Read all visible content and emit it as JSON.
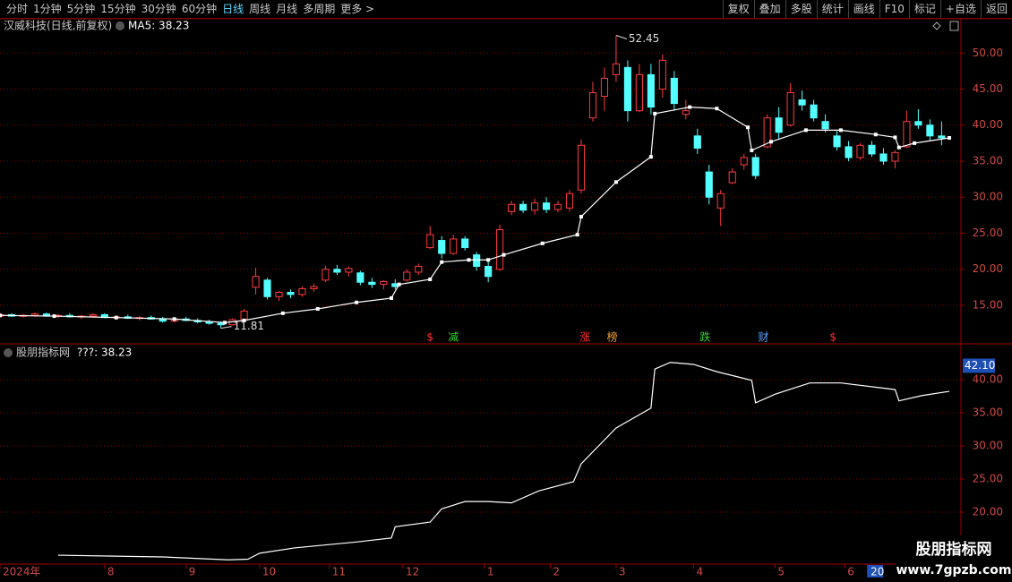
{
  "toolbar": {
    "left": [
      "分时",
      "1分钟",
      "5分钟",
      "15分钟",
      "30分钟",
      "60分钟",
      "日线",
      "周线",
      "月线",
      "多周期",
      "更多 >"
    ],
    "active": 6,
    "right": [
      "复权",
      "叠加",
      "多股",
      "统计",
      "画线",
      "F10",
      "标记",
      "+自选",
      "返回"
    ]
  },
  "chart_data": [
    {
      "type": "candlestick",
      "title": "汉威科技(日线,前复权)",
      "up_color": "#ff3c3c",
      "down_color": "#54ffff",
      "xlim": [
        0,
        248
      ],
      "ylim": [
        9.78,
        52.64
      ],
      "yticks": [
        {
          "value": 15,
          "label": "15.00"
        },
        {
          "value": 20,
          "label": "20.00"
        },
        {
          "value": 25,
          "label": "25.00"
        },
        {
          "value": 30,
          "label": "30.00"
        },
        {
          "value": 35,
          "label": "35.00"
        },
        {
          "value": 40,
          "label": "40.00"
        },
        {
          "value": 45,
          "label": "45.00"
        },
        {
          "value": 50,
          "label": "50.00"
        }
      ],
      "grid": true,
      "x": [
        0,
        3,
        6,
        9,
        12,
        15,
        18,
        21,
        24,
        27,
        30,
        33,
        36,
        39,
        42,
        45,
        48,
        51,
        54,
        57,
        60,
        63,
        66,
        69,
        72,
        75,
        78,
        81,
        84,
        87,
        90,
        93,
        96,
        99,
        102,
        105,
        108,
        111,
        114,
        117,
        120,
        123,
        126,
        129,
        132,
        135,
        138,
        141,
        144,
        147,
        150,
        153,
        156,
        159,
        162,
        165,
        168,
        171,
        174,
        177,
        180,
        183,
        186,
        189,
        192,
        195,
        198,
        201,
        204,
        207,
        210,
        213,
        216,
        219,
        222,
        225,
        228,
        231,
        234,
        237,
        240,
        243
      ],
      "ohlc": [
        [
          13.5,
          13.9,
          13.3,
          13.7
        ],
        [
          13.7,
          13.9,
          13.4,
          13.5
        ],
        [
          13.5,
          13.8,
          13.3,
          13.6
        ],
        [
          13.6,
          14.0,
          13.4,
          13.8
        ],
        [
          13.8,
          14.0,
          13.4,
          13.5
        ],
        [
          13.5,
          13.8,
          13.2,
          13.6
        ],
        [
          13.6,
          13.9,
          13.3,
          13.4
        ],
        [
          13.4,
          13.7,
          13.1,
          13.5
        ],
        [
          13.5,
          13.9,
          13.3,
          13.7
        ],
        [
          13.7,
          13.9,
          13.2,
          13.3
        ],
        [
          13.3,
          13.6,
          13.0,
          13.4
        ],
        [
          13.4,
          13.7,
          13.1,
          13.2
        ],
        [
          13.2,
          13.5,
          12.9,
          13.3
        ],
        [
          13.3,
          13.6,
          13.0,
          13.1
        ],
        [
          13.1,
          13.4,
          12.6,
          12.8
        ],
        [
          12.8,
          13.3,
          12.6,
          13.1
        ],
        [
          13.1,
          13.4,
          12.8,
          12.9
        ],
        [
          12.9,
          13.2,
          12.5,
          12.7
        ],
        [
          12.7,
          13.0,
          12.3,
          12.5
        ],
        [
          12.5,
          12.8,
          11.81,
          12.3
        ],
        [
          12.3,
          13.2,
          12.2,
          13.0
        ],
        [
          13.0,
          14.5,
          12.9,
          14.2
        ],
        [
          17.5,
          20.2,
          16.5,
          19.0
        ],
        [
          18.5,
          18.8,
          15.8,
          16.2
        ],
        [
          16.2,
          17.0,
          15.6,
          16.8
        ],
        [
          16.8,
          17.2,
          16.0,
          16.5
        ],
        [
          16.5,
          17.6,
          16.2,
          17.3
        ],
        [
          17.3,
          18.0,
          16.9,
          17.6
        ],
        [
          18.5,
          20.5,
          18.2,
          20.0
        ],
        [
          20.0,
          20.6,
          19.2,
          19.6
        ],
        [
          19.6,
          20.4,
          19.0,
          20.1
        ],
        [
          19.5,
          19.8,
          17.8,
          18.2
        ],
        [
          18.2,
          18.8,
          17.4,
          17.9
        ],
        [
          17.9,
          18.5,
          17.2,
          18.3
        ],
        [
          18.0,
          18.6,
          17.2,
          17.6
        ],
        [
          18.5,
          20.0,
          18.3,
          19.6
        ],
        [
          19.6,
          20.8,
          19.2,
          20.4
        ],
        [
          23.0,
          26.0,
          22.8,
          24.8
        ],
        [
          24.0,
          24.6,
          21.5,
          22.2
        ],
        [
          22.2,
          24.8,
          22.0,
          24.2
        ],
        [
          24.2,
          24.6,
          22.6,
          23.0
        ],
        [
          22.0,
          22.4,
          19.8,
          20.4
        ],
        [
          20.4,
          21.2,
          18.2,
          19.0
        ],
        [
          20.0,
          26.2,
          19.8,
          25.5
        ],
        [
          28.0,
          29.5,
          27.5,
          29.0
        ],
        [
          29.0,
          29.5,
          27.8,
          28.2
        ],
        [
          28.2,
          29.8,
          27.6,
          29.2
        ],
        [
          29.2,
          30.0,
          27.8,
          28.3
        ],
        [
          28.3,
          29.5,
          27.9,
          29.0
        ],
        [
          28.5,
          31.0,
          28.0,
          30.5
        ],
        [
          31.0,
          38.0,
          30.5,
          37.2
        ],
        [
          41.0,
          46.0,
          40.5,
          44.5
        ],
        [
          44.0,
          48.0,
          42.0,
          46.5
        ],
        [
          47.0,
          52.45,
          46.0,
          48.5
        ],
        [
          48.0,
          49.0,
          40.5,
          42.0
        ],
        [
          42.0,
          48.5,
          41.8,
          47.0
        ],
        [
          47.0,
          48.5,
          41.5,
          42.5
        ],
        [
          45.0,
          49.8,
          43.8,
          49.0
        ],
        [
          46.5,
          47.5,
          42.0,
          43.0
        ],
        [
          41.5,
          43.5,
          40.8,
          42.0
        ],
        [
          38.5,
          39.5,
          36.0,
          36.8
        ],
        [
          33.5,
          34.5,
          29.0,
          30.0
        ],
        [
          28.5,
          31.0,
          26.0,
          30.5
        ],
        [
          32.0,
          34.0,
          31.8,
          33.5
        ],
        [
          34.5,
          36.0,
          33.8,
          35.5
        ],
        [
          35.5,
          36.0,
          32.5,
          33.0
        ],
        [
          37.0,
          41.5,
          36.8,
          41.0
        ],
        [
          41.0,
          42.5,
          38.0,
          39.0
        ],
        [
          40.0,
          45.8,
          39.8,
          44.5
        ],
        [
          43.5,
          44.8,
          42.0,
          42.8
        ],
        [
          42.8,
          43.5,
          40.5,
          41.0
        ],
        [
          40.5,
          41.5,
          39.0,
          39.5
        ],
        [
          38.5,
          39.2,
          36.5,
          37.0
        ],
        [
          37.0,
          37.8,
          35.0,
          35.5
        ],
        [
          35.5,
          37.5,
          35.2,
          37.2
        ],
        [
          37.2,
          37.8,
          35.6,
          36.0
        ],
        [
          36.0,
          36.8,
          34.5,
          35.0
        ],
        [
          35.0,
          36.5,
          34.0,
          36.2
        ],
        [
          37.0,
          42.0,
          36.8,
          40.5
        ],
        [
          40.5,
          42.2,
          39.5,
          40.0
        ],
        [
          40.0,
          40.8,
          37.8,
          38.5
        ],
        [
          38.5,
          40.5,
          37.2,
          38.23
        ]
      ],
      "series": [
        {
          "name": "MA5",
          "legend_label": "MA5: 38.23",
          "color": "#ffffff",
          "x": [
            0,
            14,
            30,
            45,
            58,
            63,
            73,
            82,
            92,
            101,
            103,
            111,
            114,
            121,
            126,
            130,
            140,
            149,
            150,
            159,
            168,
            169,
            178,
            185,
            193,
            194,
            199,
            208,
            217,
            226,
            231,
            232,
            236,
            245
          ],
          "values": [
            13.6,
            13.5,
            13.3,
            13.1,
            12.6,
            12.9,
            13.9,
            14.5,
            15.4,
            16.0,
            17.9,
            18.6,
            21.0,
            21.3,
            21.3,
            22.0,
            23.6,
            24.8,
            27.3,
            32.1,
            35.6,
            41.6,
            42.5,
            42.3,
            39.7,
            36.5,
            37.7,
            39.3,
            39.3,
            38.7,
            38.3,
            36.9,
            37.5,
            38.23
          ]
        }
      ],
      "annotations": [
        {
          "x": 159,
          "value": 52.45,
          "label": "52.45"
        },
        {
          "x": 57,
          "value": 11.81,
          "label": "11.81"
        }
      ],
      "events": [
        {
          "x": 111,
          "label": "$",
          "color": "#ff3030"
        },
        {
          "x": 117,
          "label": "减",
          "color": "#30d030"
        },
        {
          "x": 151,
          "label": "涨",
          "color": "#ff3030"
        },
        {
          "x": 158,
          "label": "榜",
          "color": "#f0a030"
        },
        {
          "x": 182,
          "label": "跌",
          "color": "#30d030"
        },
        {
          "x": 197,
          "label": "财",
          "color": "#5aa0ff"
        },
        {
          "x": 215,
          "label": "$",
          "color": "#ff3030"
        }
      ],
      "xticks": [
        {
          "value": 0,
          "label": "2024年"
        },
        {
          "value": 27,
          "label": "8"
        },
        {
          "value": 48,
          "label": "9"
        },
        {
          "value": 67,
          "label": "10"
        },
        {
          "value": 85,
          "label": "11"
        },
        {
          "value": 104,
          "label": "12"
        },
        {
          "value": 125,
          "label": "1"
        },
        {
          "value": 142,
          "label": "2"
        },
        {
          "value": 159,
          "label": "3"
        },
        {
          "value": 179,
          "label": "4"
        },
        {
          "value": 200,
          "label": "5"
        },
        {
          "value": 218,
          "label": "6"
        },
        {
          "value": 224,
          "label": "20"
        }
      ]
    },
    {
      "type": "line",
      "title": "股朋指标网",
      "xlim": [
        0,
        248
      ],
      "ylim": [
        12.16,
        45.27
      ],
      "yticks": [
        {
          "value": 20,
          "label": "20.00"
        },
        {
          "value": 25,
          "label": "25.00"
        },
        {
          "value": 30,
          "label": "30.00"
        },
        {
          "value": 35,
          "label": "35.00"
        },
        {
          "value": 40,
          "label": "40.00"
        }
      ],
      "grid": true,
      "axis_marker": {
        "value": 42.1,
        "label": "42.10"
      },
      "series": [
        {
          "name": "???",
          "legend_label": "???: 38.23",
          "color": "#ffffff",
          "x": [
            15,
            42,
            59,
            64,
            67,
            76,
            92,
            101,
            102,
            111,
            114,
            120,
            126,
            132,
            139,
            148,
            150,
            159,
            168,
            169,
            173,
            179,
            185,
            194,
            195,
            200,
            209,
            217,
            231,
            232,
            238,
            245
          ],
          "values": [
            13.5,
            13.24,
            12.8,
            12.9,
            13.8,
            14.6,
            15.5,
            16.1,
            17.8,
            18.5,
            20.5,
            21.6,
            21.6,
            21.4,
            23.2,
            24.6,
            27.3,
            32.7,
            35.7,
            41.6,
            42.6,
            42.3,
            41.2,
            39.9,
            36.5,
            37.8,
            39.5,
            39.5,
            38.5,
            36.8,
            37.6,
            38.23
          ]
        }
      ]
    }
  ],
  "watermark": {
    "title": "股朋指标网",
    "url": "www.7gpzb.com"
  }
}
